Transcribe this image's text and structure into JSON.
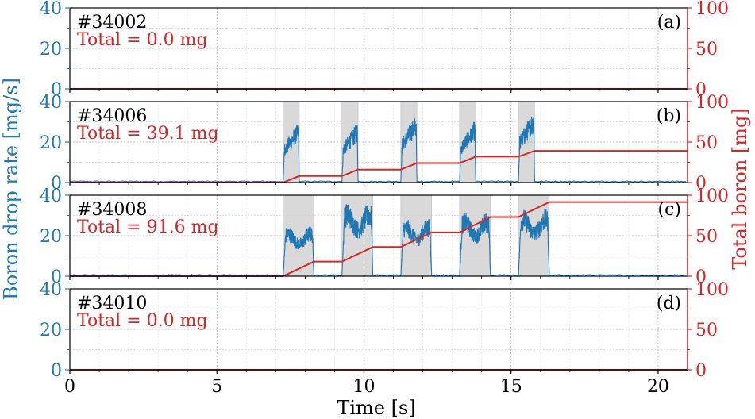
{
  "chart_data": {
    "type": "line",
    "xlabel": "Time [s]",
    "xlim": [
      0,
      21
    ],
    "xticks": [
      0,
      5,
      10,
      15,
      20
    ],
    "ylabel_left": "Boron drop rate [mg/s]",
    "ylabel_right": "Total boron [mg]",
    "ylim_left": [
      0,
      40
    ],
    "yticks_left": [
      0,
      20,
      40
    ],
    "ylim_right": [
      0,
      100
    ],
    "yticks_right": [
      0,
      50,
      100
    ],
    "colors": {
      "rate": "#1f77b4",
      "total": "#d62728",
      "shade": "#d9d9d9"
    },
    "panels": [
      {
        "id": "a",
        "label": "(a)",
        "shot": "#34002",
        "total_text": "Total = 0.0 mg",
        "pulses": [],
        "total_boron": [
          [
            0,
            0
          ],
          [
            21,
            0
          ]
        ]
      },
      {
        "id": "b",
        "label": "(b)",
        "shot": "#34006",
        "total_text": "Total = 39.1 mg",
        "pulses": [
          {
            "start": 7.25,
            "end": 7.8,
            "peak": 29
          },
          {
            "start": 9.25,
            "end": 9.8,
            "peak": 29
          },
          {
            "start": 11.25,
            "end": 11.8,
            "peak": 33
          },
          {
            "start": 13.25,
            "end": 13.8,
            "peak": 30
          },
          {
            "start": 15.25,
            "end": 15.8,
            "peak": 35
          }
        ],
        "total_boron": [
          [
            0,
            0
          ],
          [
            7.25,
            0
          ],
          [
            7.8,
            8
          ],
          [
            9.25,
            8
          ],
          [
            9.8,
            16
          ],
          [
            11.25,
            16
          ],
          [
            11.8,
            24
          ],
          [
            13.25,
            24
          ],
          [
            13.8,
            32
          ],
          [
            15.25,
            32
          ],
          [
            15.8,
            39.1
          ],
          [
            21,
            39.1
          ]
        ]
      },
      {
        "id": "c",
        "label": "(c)",
        "shot": "#34008",
        "total_text": "Total = 91.6 mg",
        "pulses": [
          {
            "start": 7.25,
            "end": 8.3,
            "peak": 26
          },
          {
            "start": 9.25,
            "end": 10.3,
            "peak": 38
          },
          {
            "start": 11.25,
            "end": 12.3,
            "peak": 30
          },
          {
            "start": 13.25,
            "end": 14.3,
            "peak": 33
          },
          {
            "start": 15.25,
            "end": 16.3,
            "peak": 35
          }
        ],
        "total_boron": [
          [
            0,
            0
          ],
          [
            7.25,
            0
          ],
          [
            8.3,
            18
          ],
          [
            9.25,
            18
          ],
          [
            10.3,
            36
          ],
          [
            11.25,
            36
          ],
          [
            12.3,
            54
          ],
          [
            13.25,
            54
          ],
          [
            14.3,
            73
          ],
          [
            15.25,
            73
          ],
          [
            16.3,
            91.6
          ],
          [
            21,
            91.6
          ]
        ]
      },
      {
        "id": "d",
        "label": "(d)",
        "shot": "#34010",
        "total_text": "Total = 0.0 mg",
        "pulses": [],
        "total_boron": [
          [
            0,
            0
          ],
          [
            21,
            0
          ]
        ]
      }
    ]
  }
}
